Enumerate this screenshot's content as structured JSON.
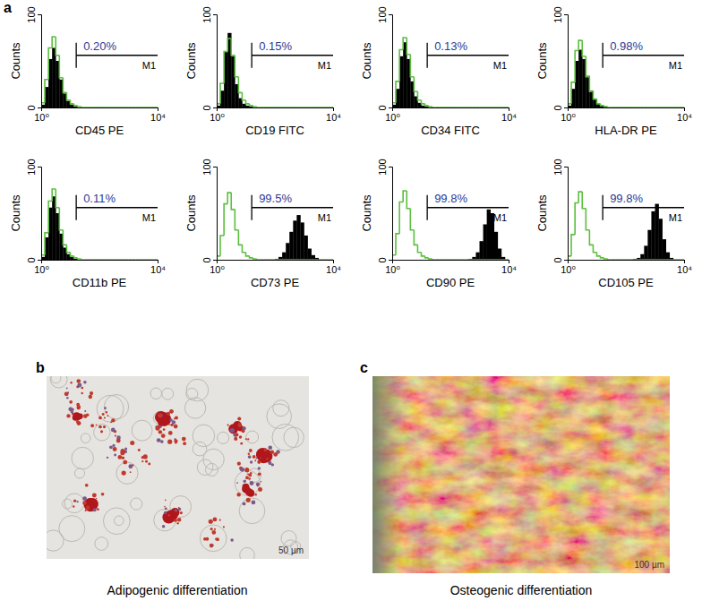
{
  "chart_data": [
    {
      "type": "histogram",
      "xlabel": "CD45 PE",
      "ylabel": "Counts",
      "log": "x",
      "xlim": [
        1,
        10000
      ],
      "ylim": [
        0,
        100
      ],
      "xticks": [
        {
          "value": 1,
          "label": "10⁰"
        },
        {
          "value": 10000,
          "label": "10⁴"
        }
      ],
      "yticks": [
        0,
        100
      ],
      "bins": [
        1,
        1.33,
        1.78,
        2.37,
        3.16,
        4.22,
        5.62,
        7.5,
        10,
        13.3,
        17.8,
        23.7,
        31.6,
        42.2,
        56.2,
        75,
        100,
        133,
        178,
        237,
        316,
        422,
        562,
        750,
        1000,
        1334,
        1778,
        2371,
        3162,
        4217,
        5623,
        7499,
        10000
      ],
      "series": [
        {
          "type": "bar",
          "color": "#000000",
          "values": [
            3,
            22,
            52,
            64,
            50,
            30,
            15,
            7,
            3,
            1,
            0,
            0,
            0,
            0,
            0,
            0,
            0,
            0,
            0,
            0,
            0,
            0,
            0,
            0,
            0,
            0,
            0,
            0,
            0,
            0,
            0,
            0
          ]
        },
        {
          "type": "line",
          "color": "#5cbf3f",
          "values": [
            5,
            30,
            64,
            76,
            56,
            32,
            16,
            8,
            4,
            2,
            1,
            0,
            0,
            0,
            0,
            0,
            0,
            0,
            0,
            0,
            0,
            0,
            0,
            0,
            0,
            0,
            0,
            0,
            0,
            0,
            0,
            0
          ]
        }
      ],
      "gate": {
        "range": [
          16,
          10000
        ],
        "label": "M1",
        "value": 0.2,
        "value_label": "0.20%"
      }
    },
    {
      "type": "histogram",
      "xlabel": "CD19 FITC",
      "ylabel": "Counts",
      "log": "x",
      "xlim": [
        1,
        10000
      ],
      "ylim": [
        0,
        100
      ],
      "xticks": [
        {
          "value": 1,
          "label": "10⁰"
        },
        {
          "value": 10000,
          "label": "10⁴"
        }
      ],
      "yticks": [
        0,
        100
      ],
      "bins": [
        1,
        1.33,
        1.78,
        2.37,
        3.16,
        4.22,
        5.62,
        7.5,
        10,
        13.3,
        17.8,
        23.7,
        31.6,
        42.2,
        56.2,
        75,
        100,
        133,
        178,
        237,
        316,
        422,
        562,
        750,
        1000,
        1334,
        1778,
        2371,
        3162,
        4217,
        5623,
        7499,
        10000
      ],
      "series": [
        {
          "type": "bar",
          "color": "#000000",
          "values": [
            2,
            18,
            60,
            80,
            55,
            25,
            10,
            4,
            2,
            1,
            0,
            0,
            0,
            0,
            0,
            0,
            0,
            0,
            0,
            0,
            0,
            0,
            0,
            0,
            0,
            0,
            0,
            0,
            0,
            0,
            0,
            0
          ]
        },
        {
          "type": "line",
          "color": "#5cbf3f",
          "values": [
            4,
            26,
            60,
            74,
            56,
            33,
            16,
            8,
            4,
            2,
            1,
            0,
            0,
            0,
            0,
            0,
            0,
            0,
            0,
            0,
            0,
            0,
            0,
            0,
            0,
            0,
            0,
            0,
            0,
            0,
            0,
            0
          ]
        }
      ],
      "gate": {
        "range": [
          16,
          10000
        ],
        "label": "M1",
        "value": 0.15,
        "value_label": "0.15%"
      }
    },
    {
      "type": "histogram",
      "xlabel": "CD34 FITC",
      "ylabel": "Counts",
      "log": "x",
      "xlim": [
        1,
        10000
      ],
      "ylim": [
        0,
        100
      ],
      "xticks": [
        {
          "value": 1,
          "label": "10⁰"
        },
        {
          "value": 10000,
          "label": "10⁴"
        }
      ],
      "yticks": [
        0,
        100
      ],
      "bins": [
        1,
        1.33,
        1.78,
        2.37,
        3.16,
        4.22,
        5.62,
        7.5,
        10,
        13.3,
        17.8,
        23.7,
        31.6,
        42.2,
        56.2,
        75,
        100,
        133,
        178,
        237,
        316,
        422,
        562,
        750,
        1000,
        1334,
        1778,
        2371,
        3162,
        4217,
        5623,
        7499,
        10000
      ],
      "series": [
        {
          "type": "bar",
          "color": "#000000",
          "values": [
            3,
            20,
            55,
            70,
            52,
            28,
            12,
            5,
            2,
            1,
            0,
            0,
            0,
            0,
            0,
            0,
            0,
            0,
            0,
            0,
            0,
            0,
            0,
            0,
            0,
            0,
            0,
            0,
            0,
            0,
            0,
            0
          ]
        },
        {
          "type": "line",
          "color": "#5cbf3f",
          "values": [
            5,
            28,
            62,
            75,
            57,
            33,
            17,
            8,
            4,
            2,
            1,
            0,
            0,
            0,
            0,
            0,
            0,
            0,
            0,
            0,
            0,
            0,
            0,
            0,
            0,
            0,
            0,
            0,
            0,
            0,
            0,
            0
          ]
        }
      ],
      "gate": {
        "range": [
          16,
          10000
        ],
        "label": "M1",
        "value": 0.13,
        "value_label": "0.13%"
      }
    },
    {
      "type": "histogram",
      "xlabel": "HLA-DR PE",
      "ylabel": "Counts",
      "log": "x",
      "xlim": [
        1,
        10000
      ],
      "ylim": [
        0,
        100
      ],
      "xticks": [
        {
          "value": 1,
          "label": "10⁰"
        },
        {
          "value": 10000,
          "label": "10⁴"
        }
      ],
      "yticks": [
        0,
        100
      ],
      "bins": [
        1,
        1.33,
        1.78,
        2.37,
        3.16,
        4.22,
        5.62,
        7.5,
        10,
        13.3,
        17.8,
        23.7,
        31.6,
        42.2,
        56.2,
        75,
        100,
        133,
        178,
        237,
        316,
        422,
        562,
        750,
        1000,
        1334,
        1778,
        2371,
        3162,
        4217,
        5623,
        7499,
        10000
      ],
      "series": [
        {
          "type": "bar",
          "color": "#000000",
          "values": [
            2,
            20,
            50,
            62,
            52,
            34,
            18,
            9,
            4,
            2,
            1,
            0,
            0,
            0,
            0,
            0,
            0,
            0,
            0,
            0,
            0,
            0,
            0,
            0,
            0,
            0,
            0,
            0,
            0,
            0,
            0,
            0
          ]
        },
        {
          "type": "line",
          "color": "#5cbf3f",
          "values": [
            4,
            27,
            61,
            72,
            55,
            33,
            17,
            9,
            4,
            2,
            1,
            0,
            0,
            0,
            0,
            0,
            0,
            0,
            0,
            0,
            0,
            0,
            0,
            0,
            0,
            0,
            0,
            0,
            0,
            0,
            0,
            0
          ]
        }
      ],
      "gate": {
        "range": [
          16,
          10000
        ],
        "label": "M1",
        "value": 0.98,
        "value_label": "0.98%"
      }
    },
    {
      "type": "histogram",
      "xlabel": "CD11b PE",
      "ylabel": "Counts",
      "log": "x",
      "xlim": [
        1,
        10000
      ],
      "ylim": [
        0,
        100
      ],
      "xticks": [
        {
          "value": 1,
          "label": "10⁰"
        },
        {
          "value": 10000,
          "label": "10⁴"
        }
      ],
      "yticks": [
        0,
        100
      ],
      "bins": [
        1,
        1.33,
        1.78,
        2.37,
        3.16,
        4.22,
        5.62,
        7.5,
        10,
        13.3,
        17.8,
        23.7,
        31.6,
        42.2,
        56.2,
        75,
        100,
        133,
        178,
        237,
        316,
        422,
        562,
        750,
        1000,
        1334,
        1778,
        2371,
        3162,
        4217,
        5623,
        7499,
        10000
      ],
      "series": [
        {
          "type": "bar",
          "color": "#000000",
          "values": [
            3,
            24,
            56,
            68,
            50,
            28,
            13,
            6,
            3,
            1,
            0,
            0,
            0,
            0,
            0,
            0,
            0,
            0,
            0,
            0,
            0,
            0,
            0,
            0,
            0,
            0,
            0,
            0,
            0,
            0,
            0,
            0
          ]
        },
        {
          "type": "line",
          "color": "#5cbf3f",
          "values": [
            5,
            29,
            63,
            76,
            56,
            32,
            16,
            8,
            4,
            2,
            1,
            0,
            0,
            0,
            0,
            0,
            0,
            0,
            0,
            0,
            0,
            0,
            0,
            0,
            0,
            0,
            0,
            0,
            0,
            0,
            0,
            0
          ]
        }
      ],
      "gate": {
        "range": [
          16,
          10000
        ],
        "label": "M1",
        "value": 0.11,
        "value_label": "0.11%"
      }
    },
    {
      "type": "histogram",
      "xlabel": "CD73 PE",
      "ylabel": "Counts",
      "log": "x",
      "xlim": [
        1,
        10000
      ],
      "ylim": [
        0,
        100
      ],
      "xticks": [
        {
          "value": 1,
          "label": "10⁰"
        },
        {
          "value": 10000,
          "label": "10⁴"
        }
      ],
      "yticks": [
        0,
        100
      ],
      "bins": [
        1,
        1.33,
        1.78,
        2.37,
        3.16,
        4.22,
        5.62,
        7.5,
        10,
        13.3,
        17.8,
        23.7,
        31.6,
        42.2,
        56.2,
        75,
        100,
        133,
        178,
        237,
        316,
        422,
        562,
        750,
        1000,
        1334,
        1778,
        2371,
        3162,
        4217,
        5623,
        7499,
        10000
      ],
      "series": [
        {
          "type": "bar",
          "color": "#000000",
          "values": [
            0,
            0,
            0,
            0,
            0,
            0,
            0,
            0,
            0,
            0,
            0,
            0,
            0,
            0,
            0,
            0,
            1,
            3,
            8,
            18,
            30,
            42,
            48,
            40,
            26,
            12,
            5,
            2,
            0,
            0,
            0,
            0
          ]
        },
        {
          "type": "line",
          "color": "#5cbf3f",
          "values": [
            4,
            26,
            60,
            72,
            54,
            32,
            16,
            8,
            4,
            2,
            1,
            0,
            0,
            0,
            0,
            0,
            0,
            0,
            0,
            0,
            0,
            0,
            0,
            0,
            0,
            0,
            0,
            0,
            0,
            0,
            0,
            0
          ]
        }
      ],
      "gate": {
        "range": [
          16,
          10000
        ],
        "label": "M1",
        "value": 99.5,
        "value_label": "99.5%"
      }
    },
    {
      "type": "histogram",
      "xlabel": "CD90 PE",
      "ylabel": "Counts",
      "log": "x",
      "xlim": [
        1,
        10000
      ],
      "ylim": [
        0,
        100
      ],
      "xticks": [
        {
          "value": 1,
          "label": "10⁰"
        },
        {
          "value": 10000,
          "label": "10⁴"
        }
      ],
      "yticks": [
        0,
        100
      ],
      "bins": [
        1,
        1.33,
        1.78,
        2.37,
        3.16,
        4.22,
        5.62,
        7.5,
        10,
        13.3,
        17.8,
        23.7,
        31.6,
        42.2,
        56.2,
        75,
        100,
        133,
        178,
        237,
        316,
        422,
        562,
        750,
        1000,
        1334,
        1778,
        2371,
        3162,
        4217,
        5623,
        7499,
        10000
      ],
      "series": [
        {
          "type": "bar",
          "color": "#000000",
          "values": [
            0,
            0,
            0,
            0,
            0,
            0,
            0,
            0,
            0,
            0,
            0,
            0,
            0,
            0,
            0,
            0,
            0,
            0,
            0,
            0,
            0,
            1,
            3,
            8,
            20,
            38,
            54,
            50,
            30,
            12,
            3,
            0
          ]
        },
        {
          "type": "line",
          "color": "#5cbf3f",
          "values": [
            5,
            28,
            62,
            74,
            55,
            32,
            16,
            8,
            4,
            2,
            1,
            0,
            0,
            0,
            0,
            0,
            0,
            0,
            0,
            0,
            0,
            0,
            0,
            0,
            0,
            0,
            0,
            0,
            0,
            0,
            0,
            0
          ]
        }
      ],
      "gate": {
        "range": [
          16,
          10000
        ],
        "label": "M1",
        "value": 99.8,
        "value_label": "99.8%"
      }
    },
    {
      "type": "histogram",
      "xlabel": "CD105 PE",
      "ylabel": "Counts",
      "log": "x",
      "xlim": [
        1,
        10000
      ],
      "ylim": [
        0,
        100
      ],
      "xticks": [
        {
          "value": 1,
          "label": "10⁰"
        },
        {
          "value": 10000,
          "label": "10⁴"
        }
      ],
      "yticks": [
        0,
        100
      ],
      "bins": [
        1,
        1.33,
        1.78,
        2.37,
        3.16,
        4.22,
        5.62,
        7.5,
        10,
        13.3,
        17.8,
        23.7,
        31.6,
        42.2,
        56.2,
        75,
        100,
        133,
        178,
        237,
        316,
        422,
        562,
        750,
        1000,
        1334,
        1778,
        2371,
        3162,
        4217,
        5623,
        7499,
        10000
      ],
      "series": [
        {
          "type": "bar",
          "color": "#000000",
          "values": [
            0,
            0,
            0,
            0,
            0,
            0,
            0,
            0,
            0,
            0,
            0,
            0,
            0,
            0,
            0,
            0,
            0,
            0,
            1,
            2,
            6,
            15,
            32,
            52,
            60,
            44,
            22,
            8,
            2,
            0,
            0,
            0
          ]
        },
        {
          "type": "line",
          "color": "#5cbf3f",
          "values": [
            4,
            27,
            61,
            73,
            55,
            32,
            16,
            8,
            4,
            2,
            1,
            0,
            0,
            0,
            0,
            0,
            0,
            0,
            0,
            0,
            0,
            0,
            0,
            0,
            0,
            0,
            0,
            0,
            0,
            0,
            0,
            0
          ]
        }
      ],
      "gate": {
        "range": [
          16,
          10000
        ],
        "label": "M1",
        "value": 99.8,
        "value_label": "99.8%"
      }
    }
  ],
  "figure": {
    "panel_label": "a",
    "images": [
      {
        "panel_label": "b",
        "caption": "Adipogenic differentiation",
        "scale_bar": "50 µm"
      },
      {
        "panel_label": "c",
        "caption": "Osteogenic differentiation",
        "scale_bar": "100 µm"
      }
    ]
  }
}
